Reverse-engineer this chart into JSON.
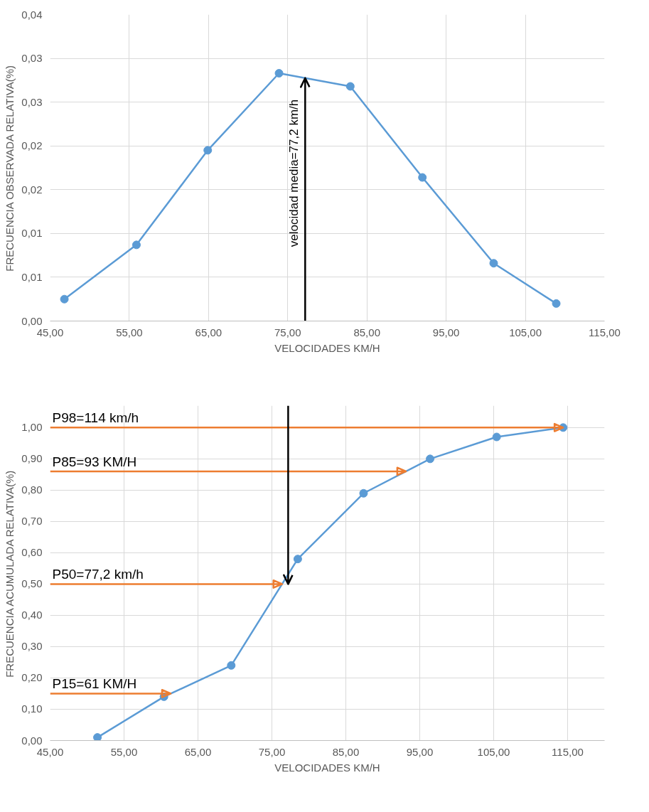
{
  "chart_data": [
    {
      "type": "line",
      "xlabel": "VELOCIDADES KM/H",
      "ylabel": "FRECUENCIA OBSERVADA RELATIVA(%)",
      "x": [
        46.8,
        55.9,
        64.9,
        73.9,
        82.9,
        92.0,
        101.0,
        108.9
      ],
      "series": [
        {
          "color": "#5b9bd5",
          "values": [
            0.0025,
            0.0087,
            0.0195,
            0.0283,
            0.0268,
            0.0164,
            0.0066,
            0.002
          ]
        }
      ],
      "xlim": [
        45,
        115
      ],
      "xticks": [
        {
          "value": 45,
          "label": "45,00"
        },
        {
          "value": 55,
          "label": "55,00"
        },
        {
          "value": 65,
          "label": "65,00"
        },
        {
          "value": 75,
          "label": "75,00"
        },
        {
          "value": 85,
          "label": "85,00"
        },
        {
          "value": 95,
          "label": "95,00"
        },
        {
          "value": 105,
          "label": "105,00"
        },
        {
          "value": 115,
          "label": "115,00"
        }
      ],
      "ylim": [
        0,
        0.035
      ],
      "yticks": [
        {
          "value": 0,
          "label": "0,00"
        },
        {
          "value": 0.005,
          "label": "0,01"
        },
        {
          "value": 0.01,
          "label": "0,01"
        },
        {
          "value": 0.015,
          "label": "0,02"
        },
        {
          "value": 0.02,
          "label": "0,02"
        },
        {
          "value": 0.025,
          "label": "0,03"
        },
        {
          "value": 0.03,
          "label": "0,03"
        },
        {
          "value": 0.035,
          "label": "0,04"
        }
      ],
      "grid": true,
      "marker": "circle",
      "line_style": "solid",
      "ref_lines": [
        {
          "axis": "x",
          "value": 77.2,
          "label": "velocidad media=77,2 km/h",
          "color": "#000000"
        }
      ]
    },
    {
      "type": "line",
      "xlabel": "VELOCIDADES KM/H",
      "ylabel": "FRECUENCIA ACUMULADA RELATIVA(%)",
      "x": [
        51.4,
        60.4,
        69.5,
        78.5,
        87.4,
        96.4,
        105.4,
        114.4
      ],
      "series": [
        {
          "color": "#5b9bd5",
          "values": [
            0.01,
            0.14,
            0.24,
            0.58,
            0.79,
            0.9,
            0.97,
            1.0
          ]
        }
      ],
      "xlim": [
        45,
        120
      ],
      "xticks": [
        {
          "value": 45,
          "label": "45,00"
        },
        {
          "value": 55,
          "label": "55,00"
        },
        {
          "value": 65,
          "label": "65,00"
        },
        {
          "value": 75,
          "label": "75,00"
        },
        {
          "value": 85,
          "label": "85,00"
        },
        {
          "value": 95,
          "label": "95,00"
        },
        {
          "value": 105,
          "label": "105,00"
        },
        {
          "value": 115,
          "label": "115,00"
        }
      ],
      "ylim": [
        0,
        1.07
      ],
      "yticks": [
        {
          "value": 0,
          "label": "0,00"
        },
        {
          "value": 0.1,
          "label": "0,10"
        },
        {
          "value": 0.2,
          "label": "0,20"
        },
        {
          "value": 0.3,
          "label": "0,30"
        },
        {
          "value": 0.4,
          "label": "0,40"
        },
        {
          "value": 0.5,
          "label": "0,50"
        },
        {
          "value": 0.6,
          "label": "0,60"
        },
        {
          "value": 0.7,
          "label": "0,70"
        },
        {
          "value": 0.8,
          "label": "0,80"
        },
        {
          "value": 0.9,
          "label": "0,90"
        },
        {
          "value": 1.0,
          "label": "1,00"
        }
      ],
      "grid": true,
      "marker": "circle",
      "line_style": "solid",
      "annotations": [
        "P98=114 km/h",
        "P85=93 KM/H",
        "P50=77,2 km/h",
        "P15=61 KM/H"
      ],
      "ref_lines": [
        {
          "axis": "y",
          "value": 1.0,
          "color": "#ed7d31"
        },
        {
          "axis": "y",
          "value": 0.86,
          "color": "#ed7d31"
        },
        {
          "axis": "y",
          "value": 0.5,
          "color": "#ed7d31"
        },
        {
          "axis": "y",
          "value": 0.15,
          "color": "#ed7d31"
        },
        {
          "axis": "x",
          "value": 77.2,
          "color": "#000000"
        }
      ]
    }
  ]
}
